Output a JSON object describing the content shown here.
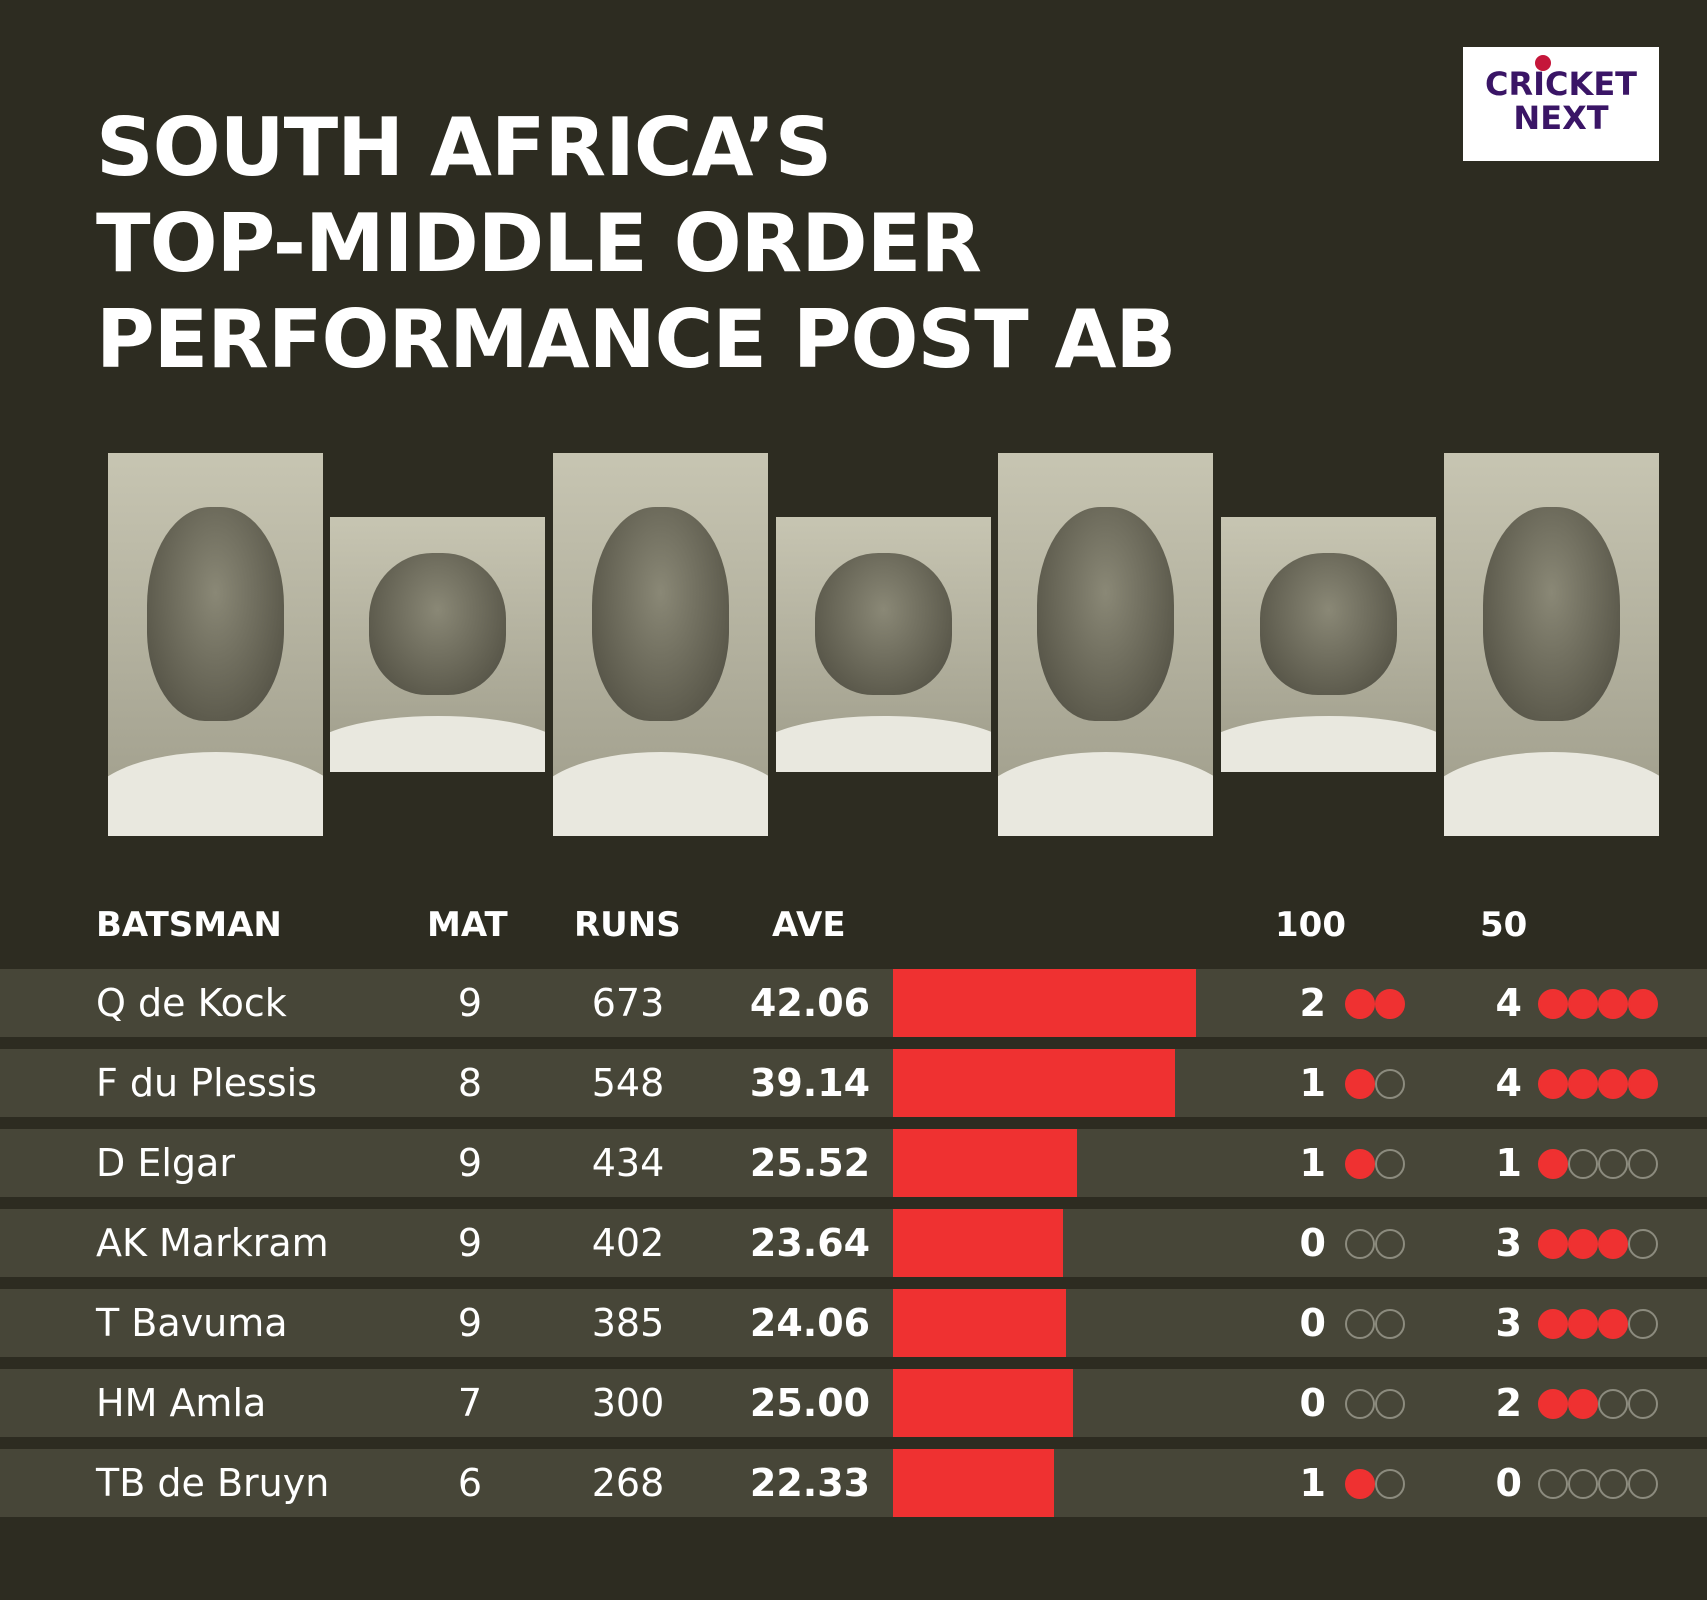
{
  "title_lines": [
    "SOUTH AFRICA’S",
    "TOP-MIDDLE ORDER",
    "PERFORMANCE POST AB"
  ],
  "logo": {
    "line1": "CRICKET",
    "line2": "NEXT"
  },
  "colors": {
    "background": "#2d2c21",
    "row": "#474638",
    "accent": "#ef3131",
    "text": "#ffffff"
  },
  "headers": {
    "batsman": "BATSMAN",
    "mat": "MAT",
    "runs": "RUNS",
    "ave": "AVE",
    "hundreds": "100",
    "fifties": "50"
  },
  "chart_data": {
    "type": "table",
    "columns": [
      "BATSMAN",
      "MAT",
      "RUNS",
      "AVE",
      "100",
      "50"
    ],
    "bar_column": "AVE",
    "rows": [
      {
        "batsman": "Q de Kock",
        "mat": "9",
        "runs": "673",
        "ave": "42.06",
        "hundreds": "2",
        "fifties": "4"
      },
      {
        "batsman": "F du Plessis",
        "mat": "8",
        "runs": "548",
        "ave": "39.14",
        "hundreds": "1",
        "fifties": "4"
      },
      {
        "batsman": "D Elgar",
        "mat": "9",
        "runs": "434",
        "ave": "25.52",
        "hundreds": "1",
        "fifties": "1"
      },
      {
        "batsman": "AK Markram",
        "mat": "9",
        "runs": "402",
        "ave": "23.64",
        "hundreds": "0",
        "fifties": "3"
      },
      {
        "batsman": "T Bavuma",
        "mat": "9",
        "runs": "385",
        "ave": "24.06",
        "hundreds": "0",
        "fifties": "3"
      },
      {
        "batsman": "HM Amla",
        "mat": "7",
        "runs": "300",
        "ave": "25.00",
        "hundreds": "0",
        "fifties": "2"
      },
      {
        "batsman": "TB de Bruyn",
        "mat": "6",
        "runs": "268",
        "ave": "22.33",
        "hundreds": "1",
        "fifties": "0"
      }
    ],
    "hundreds_dots_total": 2,
    "fifties_dots_total": 4
  }
}
